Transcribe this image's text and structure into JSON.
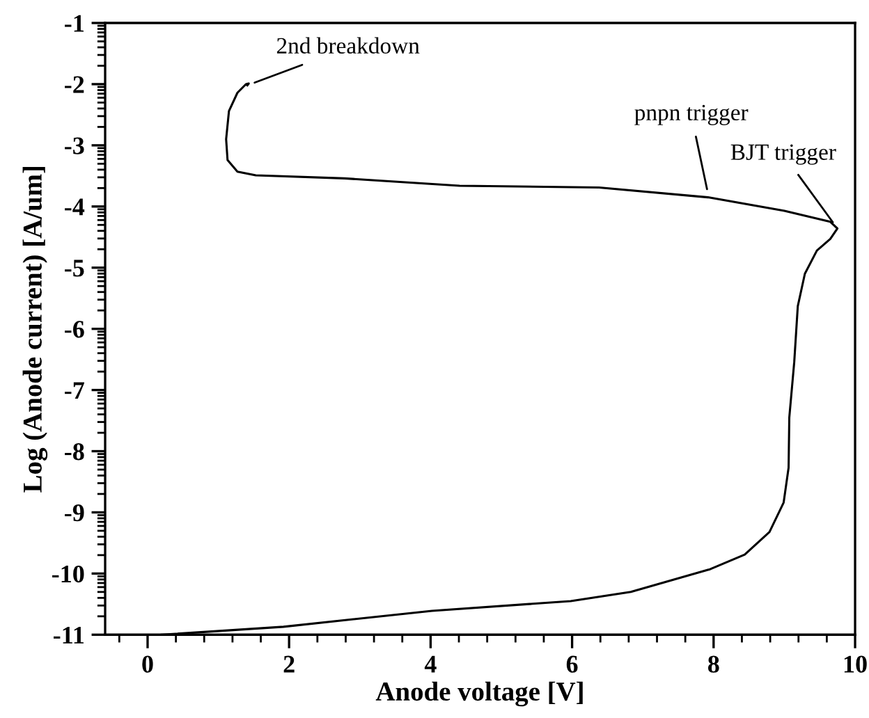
{
  "chart_data": {
    "type": "line",
    "xlabel": "Anode voltage [V]",
    "ylabel": "Log (Anode current) [A/um]",
    "x": [
      0.2,
      1.92,
      4.02,
      5.98,
      6.83,
      7.95,
      8.44,
      8.79,
      8.99,
      9.06,
      9.07,
      9.14,
      9.19,
      9.29,
      9.46,
      9.65,
      9.75,
      9.65,
      9.0,
      7.92,
      6.38,
      4.41,
      2.78,
      1.53,
      1.27,
      1.13,
      1.11,
      1.15,
      1.27,
      1.39,
      1.43,
      1.41
    ],
    "series": [
      {
        "color": "#000000",
        "values": [
          -11.0,
          -10.87,
          -10.61,
          -10.45,
          -10.3,
          -9.93,
          -9.69,
          -9.32,
          -8.84,
          -8.27,
          -7.45,
          -6.54,
          -5.63,
          -5.1,
          -4.72,
          -4.53,
          -4.36,
          -4.25,
          -4.07,
          -3.85,
          -3.69,
          -3.66,
          -3.54,
          -3.49,
          -3.43,
          -3.24,
          -2.9,
          -2.44,
          -2.14,
          -2.0,
          -1.99,
          -2.02
        ]
      }
    ],
    "xlim": [
      -0.6,
      10
    ],
    "xticks": [
      0,
      2,
      4,
      6,
      8,
      10
    ],
    "ylim": [
      -11,
      -1
    ],
    "yticks": [
      -11,
      -10,
      -9,
      -8,
      -7,
      -6,
      -5,
      -4,
      -3,
      -2,
      -1
    ],
    "grid": false,
    "legend": false,
    "marker": "none",
    "line_style": "solid",
    "annotations": [
      {
        "text": "2nd breakdown",
        "x": 1.41,
        "y": -2.02
      },
      {
        "text": "pnpn trigger",
        "x": 7.93,
        "y": -3.84
      },
      {
        "text": "BJT trigger",
        "x": 9.75,
        "y": -4.36
      }
    ]
  }
}
